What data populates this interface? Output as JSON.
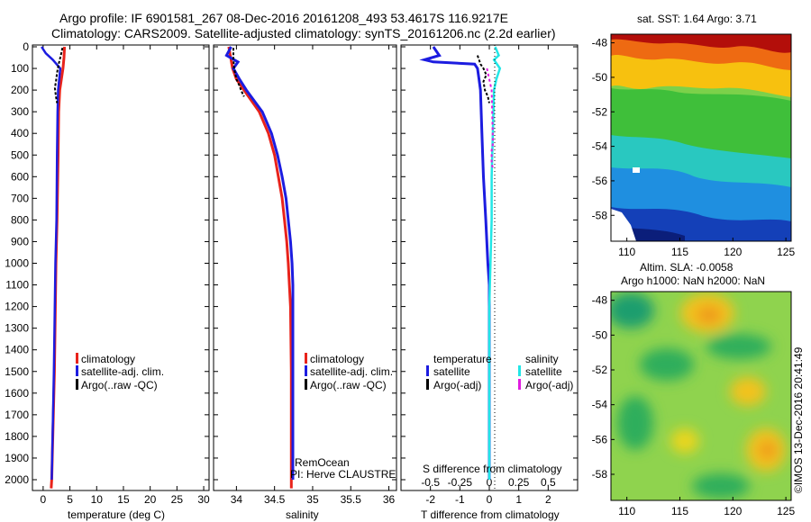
{
  "header": {
    "line1": "Argo profile: IF 6901581_267 08-Dec-2016 20161208_493 53.4617S 116.9217E",
    "line2": "Climatology: CARS2009. Satellite-adjusted climatology: synTS_20161206.nc (2.2d earlier)"
  },
  "colors": {
    "climatology": "#e8231b",
    "satellite": "#1c1ce0",
    "argo": "#000000",
    "sat_salinity": "#22e6e6",
    "argo_salinity": "#e01ce0"
  },
  "chart_data": [
    {
      "type": "line",
      "name": "temperature-profile",
      "xlabel": "temperature (deg C)",
      "ylabel": "depth",
      "xlim": [
        -2,
        31
      ],
      "ylim": [
        2050,
        0
      ],
      "x_ticks": [
        "0",
        "5",
        "10",
        "15",
        "20",
        "25",
        "30"
      ],
      "y_ticks": [
        "0",
        "100",
        "200",
        "300",
        "400",
        "500",
        "600",
        "700",
        "800",
        "900",
        "1000",
        "1100",
        "1200",
        "1300",
        "1400",
        "1500",
        "1600",
        "1700",
        "1800",
        "1900",
        "2000"
      ],
      "legend": [
        "climatology",
        "satellite-adj. clim.",
        "Argo(..raw -QC)"
      ],
      "series": [
        {
          "name": "climatology",
          "depth": [
            0,
            50,
            100,
            150,
            200,
            300,
            500,
            800,
            1000,
            1500,
            2000,
            2040
          ],
          "values": [
            4.0,
            3.9,
            3.7,
            3.4,
            3.1,
            2.9,
            2.8,
            2.6,
            2.4,
            2.1,
            1.6,
            1.5
          ]
        },
        {
          "name": "satellite-adj. clim.",
          "depth": [
            0,
            30,
            60,
            100,
            150,
            200,
            300,
            500,
            800,
            1000,
            1500,
            2000
          ],
          "values": [
            -0.3,
            0.5,
            1.8,
            3.2,
            3.0,
            2.8,
            2.7,
            2.6,
            2.5,
            2.3,
            2.0,
            1.6
          ]
        },
        {
          "name": "Argo(..raw -QC)",
          "depth": [
            5,
            40,
            80,
            120,
            160,
            190,
            210,
            230,
            260
          ],
          "values": [
            3.6,
            3.3,
            2.9,
            2.6,
            2.4,
            2.2,
            2.3,
            2.4,
            2.6
          ]
        }
      ]
    },
    {
      "type": "line",
      "name": "salinity-profile",
      "xlabel": "salinity",
      "ylabel": "depth",
      "xlim": [
        33.7,
        36.1
      ],
      "ylim": [
        2050,
        0
      ],
      "x_ticks": [
        "34",
        "34.5",
        "35",
        "35.5",
        "36"
      ],
      "legend": [
        "climatology",
        "satellite-adj. clim.",
        "Argo(..raw -QC)"
      ],
      "annotations": [
        "RemOcean",
        "PI: Herve CLAUSTRE"
      ],
      "series": [
        {
          "name": "climatology",
          "depth": [
            0,
            100,
            150,
            200,
            300,
            400,
            500,
            600,
            700,
            800,
            900,
            1000,
            1200,
            1500,
            2000,
            2040
          ],
          "values": [
            33.9,
            33.95,
            34.0,
            34.1,
            34.3,
            34.42,
            34.5,
            34.55,
            34.6,
            34.63,
            34.66,
            34.68,
            34.71,
            34.72,
            34.72,
            34.72
          ]
        },
        {
          "name": "satellite-adj. clim.",
          "depth": [
            0,
            40,
            70,
            100,
            150,
            200,
            300,
            400,
            500,
            600,
            700,
            800,
            900,
            1000,
            1100,
            1200,
            1500,
            2000
          ],
          "values": [
            33.93,
            33.87,
            34.02,
            33.96,
            34.04,
            34.13,
            34.34,
            34.46,
            34.54,
            34.6,
            34.65,
            34.68,
            34.71,
            34.73,
            34.74,
            34.74,
            34.74,
            34.74
          ]
        },
        {
          "name": "Argo(..raw -QC)",
          "depth": [
            5,
            50,
            100,
            150,
            180,
            200,
            230
          ],
          "values": [
            33.96,
            33.96,
            33.97,
            34.0,
            34.04,
            34.06,
            34.1
          ]
        }
      ]
    },
    {
      "type": "line",
      "name": "difference-profile",
      "xlabel": "T difference from climatology",
      "x_ticks": [
        "-2",
        "-1",
        "0",
        "1",
        "2"
      ],
      "xlim": [
        -3,
        3
      ],
      "top_axis_label": "S difference from climatology",
      "top_ticks": [
        "-0.5",
        "-0.25",
        "0",
        "0.25",
        "0.5"
      ],
      "top_xlim": [
        -0.75,
        0.75
      ],
      "ylim": [
        2050,
        0
      ],
      "legend_titles": [
        "temperature",
        "salinity"
      ],
      "legend": [
        "satellite",
        "Argo(-adj)",
        "satellite",
        "Argo(-adj)"
      ],
      "series": [
        {
          "name": "T satellite",
          "depth": [
            0,
            40,
            60,
            70,
            80,
            100,
            150,
            200,
            400,
            600,
            800,
            1000,
            1100,
            2000
          ],
          "values": [
            -1.9,
            -1.7,
            -2.2,
            -1.9,
            -0.5,
            -0.4,
            -0.35,
            -0.3,
            -0.25,
            -0.2,
            -0.12,
            -0.05,
            0,
            0
          ]
        },
        {
          "name": "T Argo(-adj)",
          "depth": [
            40,
            60,
            80,
            100,
            130,
            160,
            200,
            230,
            260
          ],
          "values": [
            -0.4,
            -0.35,
            -0.3,
            -0.2,
            -0.1,
            -0.2,
            -0.15,
            -0.05,
            0
          ]
        },
        {
          "name": "S satellite",
          "depth": [
            0,
            40,
            60,
            100,
            150,
            200,
            400,
            600,
            800,
            1000,
            1200,
            2000
          ],
          "values": [
            0.05,
            0.08,
            0.04,
            0.09,
            0.06,
            0.04,
            0.03,
            0.02,
            0.02,
            0.01,
            0.0,
            0.0
          ]
        },
        {
          "name": "S Argo(-adj)",
          "depth": [
            100,
            150,
            200,
            420,
            450,
            480,
            540,
            560
          ],
          "values": [
            -0.02,
            0.0,
            0.02,
            0.03,
            0.03,
            0.02,
            0.02,
            0.03
          ]
        }
      ]
    },
    {
      "type": "heatmap",
      "name": "sst-map",
      "title": "sat. SST: 1.64 Argo: 3.71",
      "xlim": [
        108.5,
        125.5
      ],
      "ylim": [
        -59.5,
        -47.5
      ],
      "x_ticks": [
        "110",
        "115",
        "120",
        "125"
      ],
      "y_ticks": [
        "-48",
        "-50",
        "-52",
        "-54",
        "-56",
        "-58"
      ]
    },
    {
      "type": "heatmap",
      "name": "sla-map",
      "title_lines": [
        "Altim. SLA: -0.0058",
        "Argo h1000: NaN h2000: NaN"
      ],
      "side_label": "©IMOS 13-Dec-2016 20:41:49",
      "xlim": [
        108.5,
        125.5
      ],
      "ylim": [
        -59.5,
        -47.5
      ],
      "x_ticks": [
        "110",
        "115",
        "120",
        "125"
      ],
      "y_ticks": [
        "-48",
        "-50",
        "-52",
        "-54",
        "-56",
        "-58"
      ]
    }
  ]
}
